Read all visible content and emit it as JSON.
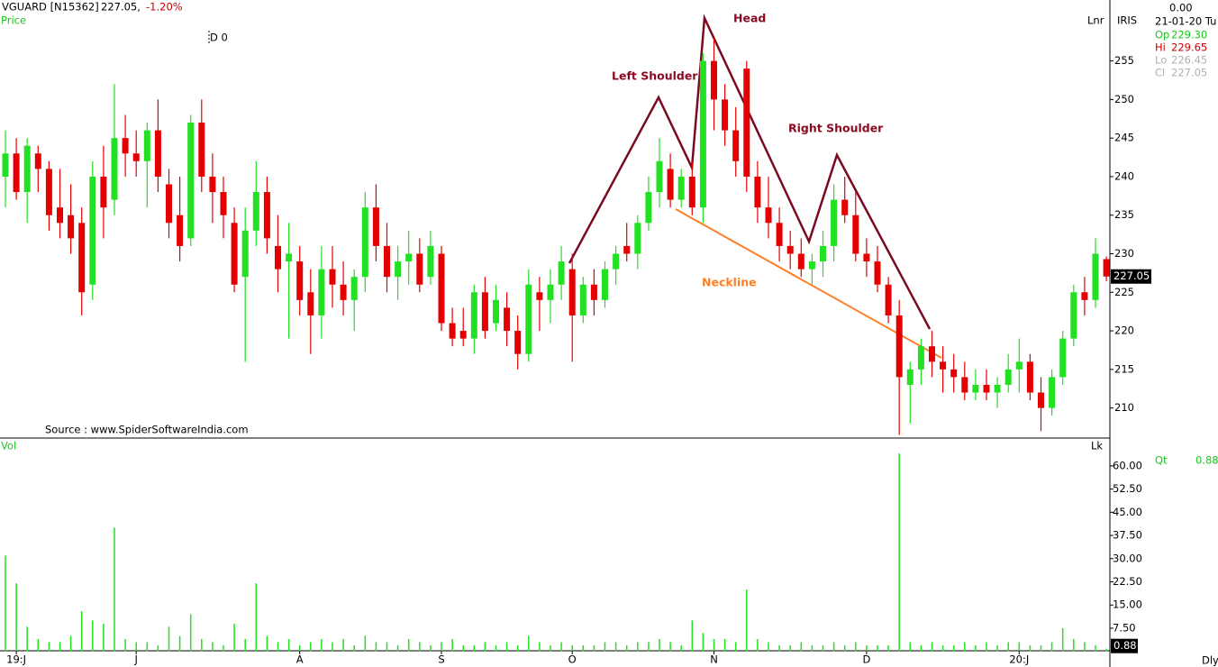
{
  "chart_data": {
    "type": "candlestick",
    "title": "VGUARD [N15362]",
    "last_text": "227.05,",
    "change_text": "-1.20%",
    "price_label": "Price",
    "cursor_label": "D 0",
    "scale_label": "Lnr",
    "interval_label": "Dly",
    "source": "Source : www.SpiderSoftwareIndia.com",
    "annotations": [
      "Left Shoulder",
      "Head",
      "Right Shoulder",
      "Neckline"
    ],
    "up_color": "#22e022",
    "down_color": "#e40000",
    "categories": [
      null,
      "19:J",
      null,
      null,
      null,
      null,
      null,
      null,
      null,
      null,
      null,
      null,
      "J",
      null,
      null,
      null,
      null,
      null,
      null,
      null,
      null,
      null,
      null,
      null,
      null,
      null,
      null,
      "A",
      null,
      null,
      null,
      null,
      null,
      null,
      null,
      null,
      null,
      null,
      null,
      null,
      "S",
      null,
      null,
      null,
      null,
      null,
      null,
      null,
      null,
      null,
      null,
      null,
      "O",
      null,
      null,
      null,
      null,
      null,
      null,
      null,
      null,
      null,
      null,
      null,
      null,
      "N",
      null,
      null,
      null,
      null,
      null,
      null,
      null,
      null,
      null,
      null,
      null,
      null,
      null,
      "D",
      null,
      null,
      null,
      null,
      null,
      null,
      null,
      null,
      null,
      null,
      null,
      null,
      null,
      "20:J",
      null,
      null,
      null,
      null,
      null,
      null,
      null,
      null
    ],
    "open": [
      240,
      243,
      238,
      243,
      241,
      236,
      235,
      234,
      226,
      240,
      237,
      245,
      243,
      242,
      246,
      239,
      235,
      232,
      247,
      240,
      238,
      234,
      227,
      233,
      238,
      231,
      229,
      229,
      225,
      222,
      228,
      226,
      224,
      227,
      236,
      231,
      227,
      229,
      230,
      227,
      230,
      221,
      220,
      219,
      225,
      221,
      223,
      220,
      217,
      225,
      224,
      226,
      228,
      222,
      226,
      224,
      228,
      231,
      230,
      234,
      238,
      241,
      237,
      240,
      236,
      255,
      250,
      246,
      254,
      240,
      236,
      234,
      231,
      230,
      228,
      229,
      231,
      237,
      235,
      230,
      229,
      226,
      222,
      213,
      215,
      218,
      216,
      215,
      214,
      212,
      213,
      212,
      213,
      215,
      216,
      212,
      210,
      214,
      219,
      225,
      224,
      229.3
    ],
    "high": [
      246,
      245,
      245,
      244,
      242,
      241,
      239,
      236,
      242,
      244,
      252,
      248,
      246,
      247,
      250,
      241,
      240,
      248,
      250,
      243,
      240,
      236,
      236,
      242,
      240,
      235,
      234,
      231,
      228,
      231,
      231,
      229,
      228,
      238,
      239,
      234,
      231,
      233,
      232,
      233,
      231,
      223,
      223,
      226,
      227,
      226,
      225,
      222,
      228,
      227,
      228,
      231,
      230,
      227,
      228,
      229,
      231,
      234,
      235,
      240,
      245,
      243,
      241,
      242,
      256,
      258,
      252,
      249,
      255,
      242,
      240,
      236,
      233,
      232,
      230,
      233,
      239,
      240,
      238,
      232,
      231,
      227,
      224,
      216,
      219,
      220,
      218,
      217,
      216,
      215,
      215,
      214,
      217,
      219,
      217,
      214,
      215,
      220,
      226,
      227,
      232,
      229.65
    ],
    "low": [
      236,
      237,
      234,
      238,
      233,
      232,
      230,
      222,
      224,
      232,
      235,
      240,
      240,
      236,
      238,
      232,
      229,
      231,
      238,
      234,
      232,
      225,
      216,
      231,
      230,
      225,
      219,
      222,
      217,
      219,
      223,
      222,
      220,
      225,
      229,
      225,
      224,
      226,
      225,
      226,
      220,
      218,
      218,
      217,
      219,
      220,
      218,
      215,
      216,
      220,
      221,
      224,
      216,
      221,
      222,
      223,
      226,
      229,
      228,
      233,
      236,
      236,
      236,
      235,
      234,
      246,
      244,
      240,
      238,
      234,
      232,
      229,
      228,
      227,
      226,
      227,
      229,
      234,
      229,
      227,
      225,
      221,
      206.5,
      208,
      213,
      214,
      212,
      212,
      211,
      211,
      211,
      210,
      212,
      212,
      211,
      207,
      209,
      213,
      218,
      222,
      223,
      226.45
    ],
    "close": [
      243,
      238,
      244,
      241,
      235,
      234,
      232,
      225,
      240,
      236,
      245,
      243,
      242,
      246,
      240,
      234,
      231,
      247,
      240,
      238,
      235,
      226,
      233,
      238,
      232,
      228,
      230,
      224,
      222,
      228,
      226,
      224,
      227,
      236,
      231,
      227,
      229,
      230,
      226,
      231,
      221,
      219,
      219,
      225,
      220,
      224,
      220,
      217,
      226,
      224,
      226,
      229,
      222,
      226,
      224,
      228,
      230,
      230,
      234,
      238,
      242,
      237,
      240,
      236,
      255,
      250,
      246,
      242,
      240,
      236,
      234,
      231,
      230,
      228,
      229,
      231,
      237,
      235,
      230,
      229,
      226,
      222,
      214,
      215,
      218,
      216,
      215,
      214,
      212,
      213,
      212,
      213,
      215,
      216,
      212,
      210,
      214,
      219,
      225,
      224,
      230,
      227.05
    ],
    "last_price": 227.05,
    "ylim": [
      206.1,
      262.9
    ],
    "yticks": [
      210,
      215,
      220,
      225,
      230,
      235,
      240,
      245,
      250,
      255
    ],
    "volume": {
      "label": "Vol",
      "lock_label": "Lk",
      "color": "#22e022",
      "values": [
        31,
        22,
        8,
        4,
        3,
        3,
        5,
        13,
        10,
        9,
        40,
        4,
        3,
        3,
        2,
        8,
        5,
        12,
        4,
        3,
        2,
        9,
        4,
        22,
        5,
        3,
        4,
        2,
        3,
        4,
        3,
        4,
        2,
        5,
        3,
        3,
        2,
        4,
        3,
        2,
        3,
        4,
        2,
        2,
        3,
        2,
        3,
        2,
        5,
        3,
        2,
        3,
        2,
        2,
        2,
        3,
        3,
        2,
        3,
        3,
        4,
        3,
        2,
        10,
        6,
        4,
        4,
        3,
        20,
        4,
        3,
        2,
        2,
        3,
        2,
        2,
        3,
        2,
        3,
        2,
        2,
        2,
        64,
        3,
        2,
        3,
        2,
        2,
        3,
        2,
        3,
        2,
        3,
        3,
        2,
        2,
        3,
        7.5,
        4,
        3,
        2,
        0.88
      ],
      "ylim": [
        0,
        68.7
      ],
      "yticks": [
        {
          "value": 7.5,
          "label": "7.50"
        },
        {
          "value": 15,
          "label": "15.00"
        },
        {
          "value": 22.5,
          "label": "22.50"
        },
        {
          "value": 30,
          "label": "30.00"
        },
        {
          "value": 37.5,
          "label": "37.50"
        },
        {
          "value": 45,
          "label": "45.00"
        },
        {
          "value": 52.5,
          "label": "52.50"
        },
        {
          "value": 60,
          "label": "60.00"
        }
      ]
    }
  },
  "info_panel": {
    "title": "IRIS",
    "value": "0.00",
    "date": "21-01-20 Tu",
    "rows": [
      [
        "Op",
        "229.30"
      ],
      [
        "Hi",
        "229.65"
      ],
      [
        "Lo",
        "226.45"
      ],
      [
        "Cl",
        "227.05"
      ]
    ],
    "qt_label": "Qt"
  }
}
